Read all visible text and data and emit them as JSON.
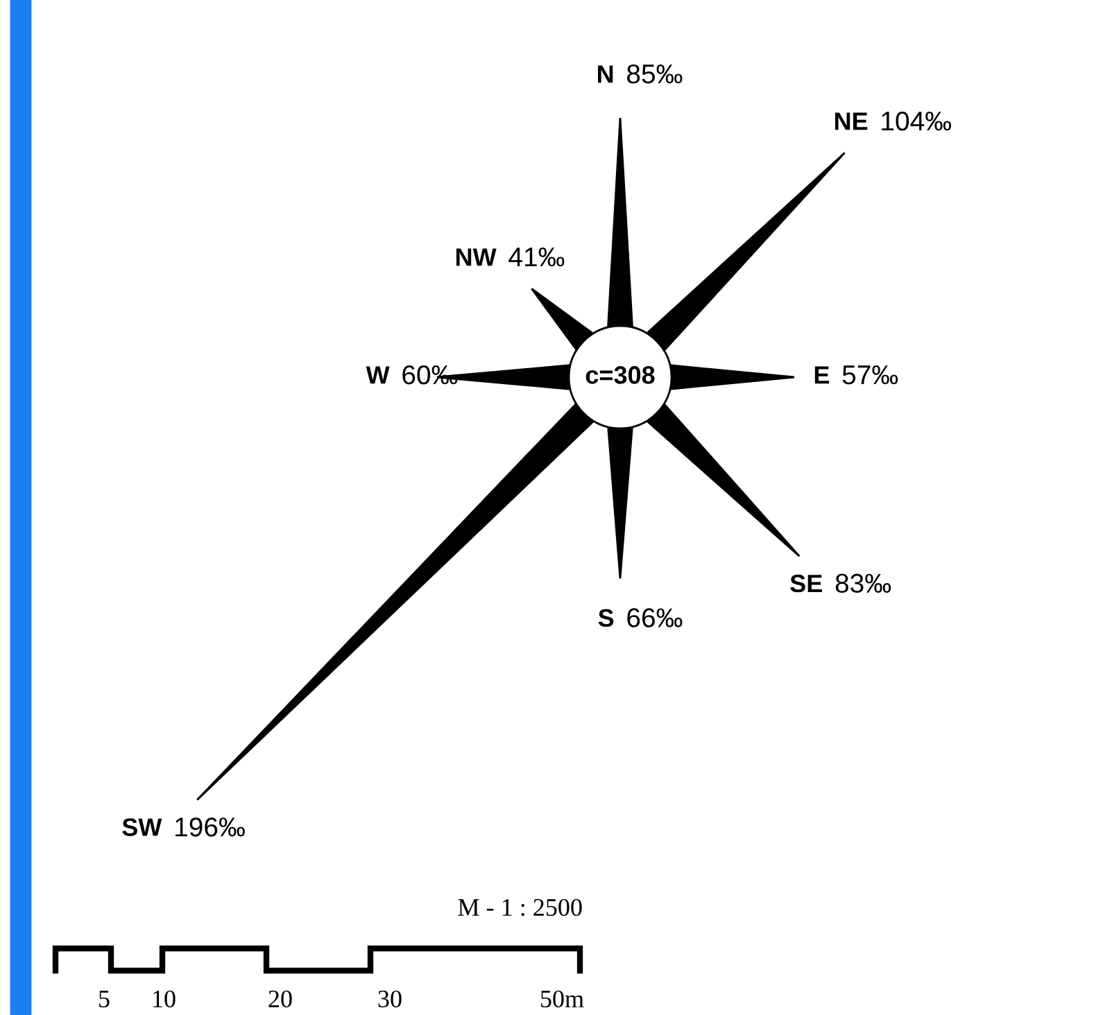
{
  "chart_data": {
    "type": "other",
    "categories": [
      "N",
      "NE",
      "E",
      "SE",
      "S",
      "SW",
      "W",
      "NW"
    ],
    "values": [
      85,
      104,
      57,
      83,
      66,
      196,
      60,
      41
    ],
    "value_labels": [
      "85‰",
      "104‰",
      "57‰",
      "83‰",
      "66‰",
      "196‰",
      "60‰",
      "41‰"
    ],
    "color": "#000000",
    "annotations": [
      "c=308",
      "M - 1 : 2500",
      "5",
      "10",
      "20",
      "30",
      "50m"
    ]
  }
}
